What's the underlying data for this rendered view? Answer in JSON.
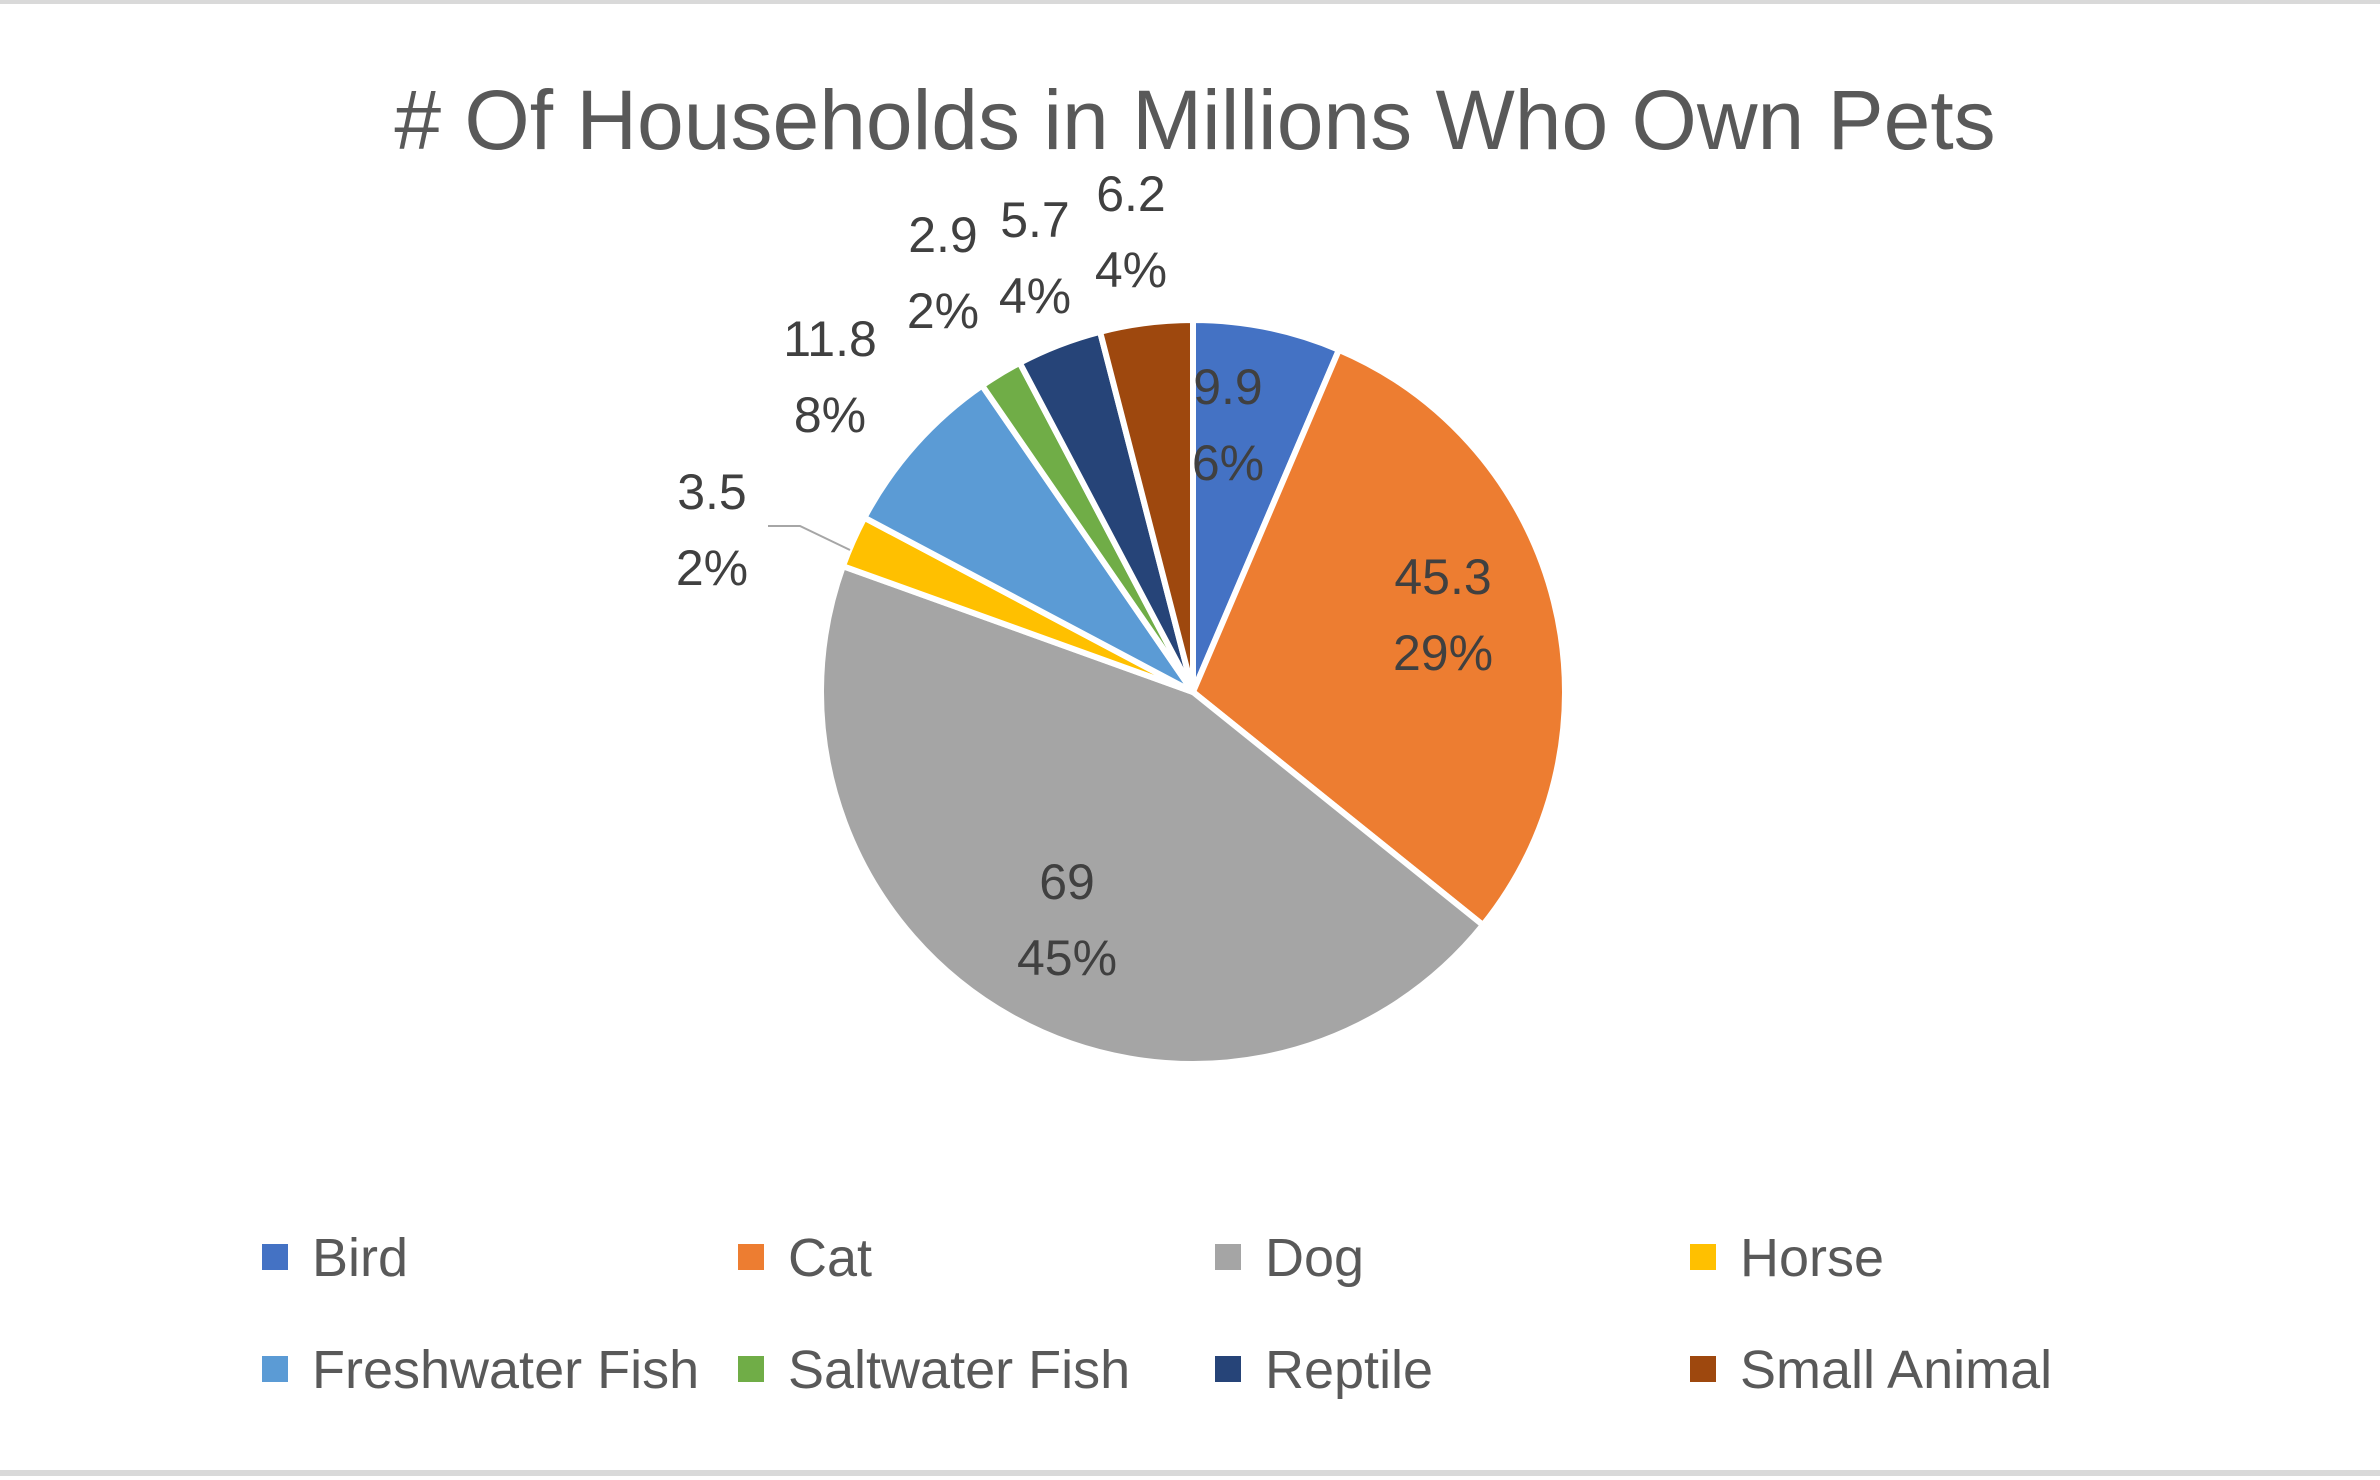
{
  "chart_data": {
    "type": "pie",
    "title": "# Of Households in Millions Who Own Pets",
    "categories": [
      "Bird",
      "Cat",
      "Dog",
      "Horse",
      "Freshwater Fish",
      "Saltwater Fish",
      "Reptile",
      "Small Animal"
    ],
    "values": [
      9.9,
      45.3,
      69,
      3.5,
      11.8,
      2.9,
      5.7,
      6.2
    ],
    "value_labels": [
      "9.9",
      "45.3",
      "69",
      "3.5",
      "11.8",
      "2.9",
      "5.7",
      "6.2"
    ],
    "percent_labels": [
      "6%",
      "29%",
      "45%",
      "2%",
      "8%",
      "2%",
      "4%",
      "4%"
    ],
    "colors": [
      "#4472C4",
      "#ED7D31",
      "#A5A5A5",
      "#FFC000",
      "#5B9BD5",
      "#70AD47",
      "#264478",
      "#9E480E"
    ],
    "start_angle_deg": 0,
    "direction": "clockwise",
    "legend_position": "bottom"
  }
}
